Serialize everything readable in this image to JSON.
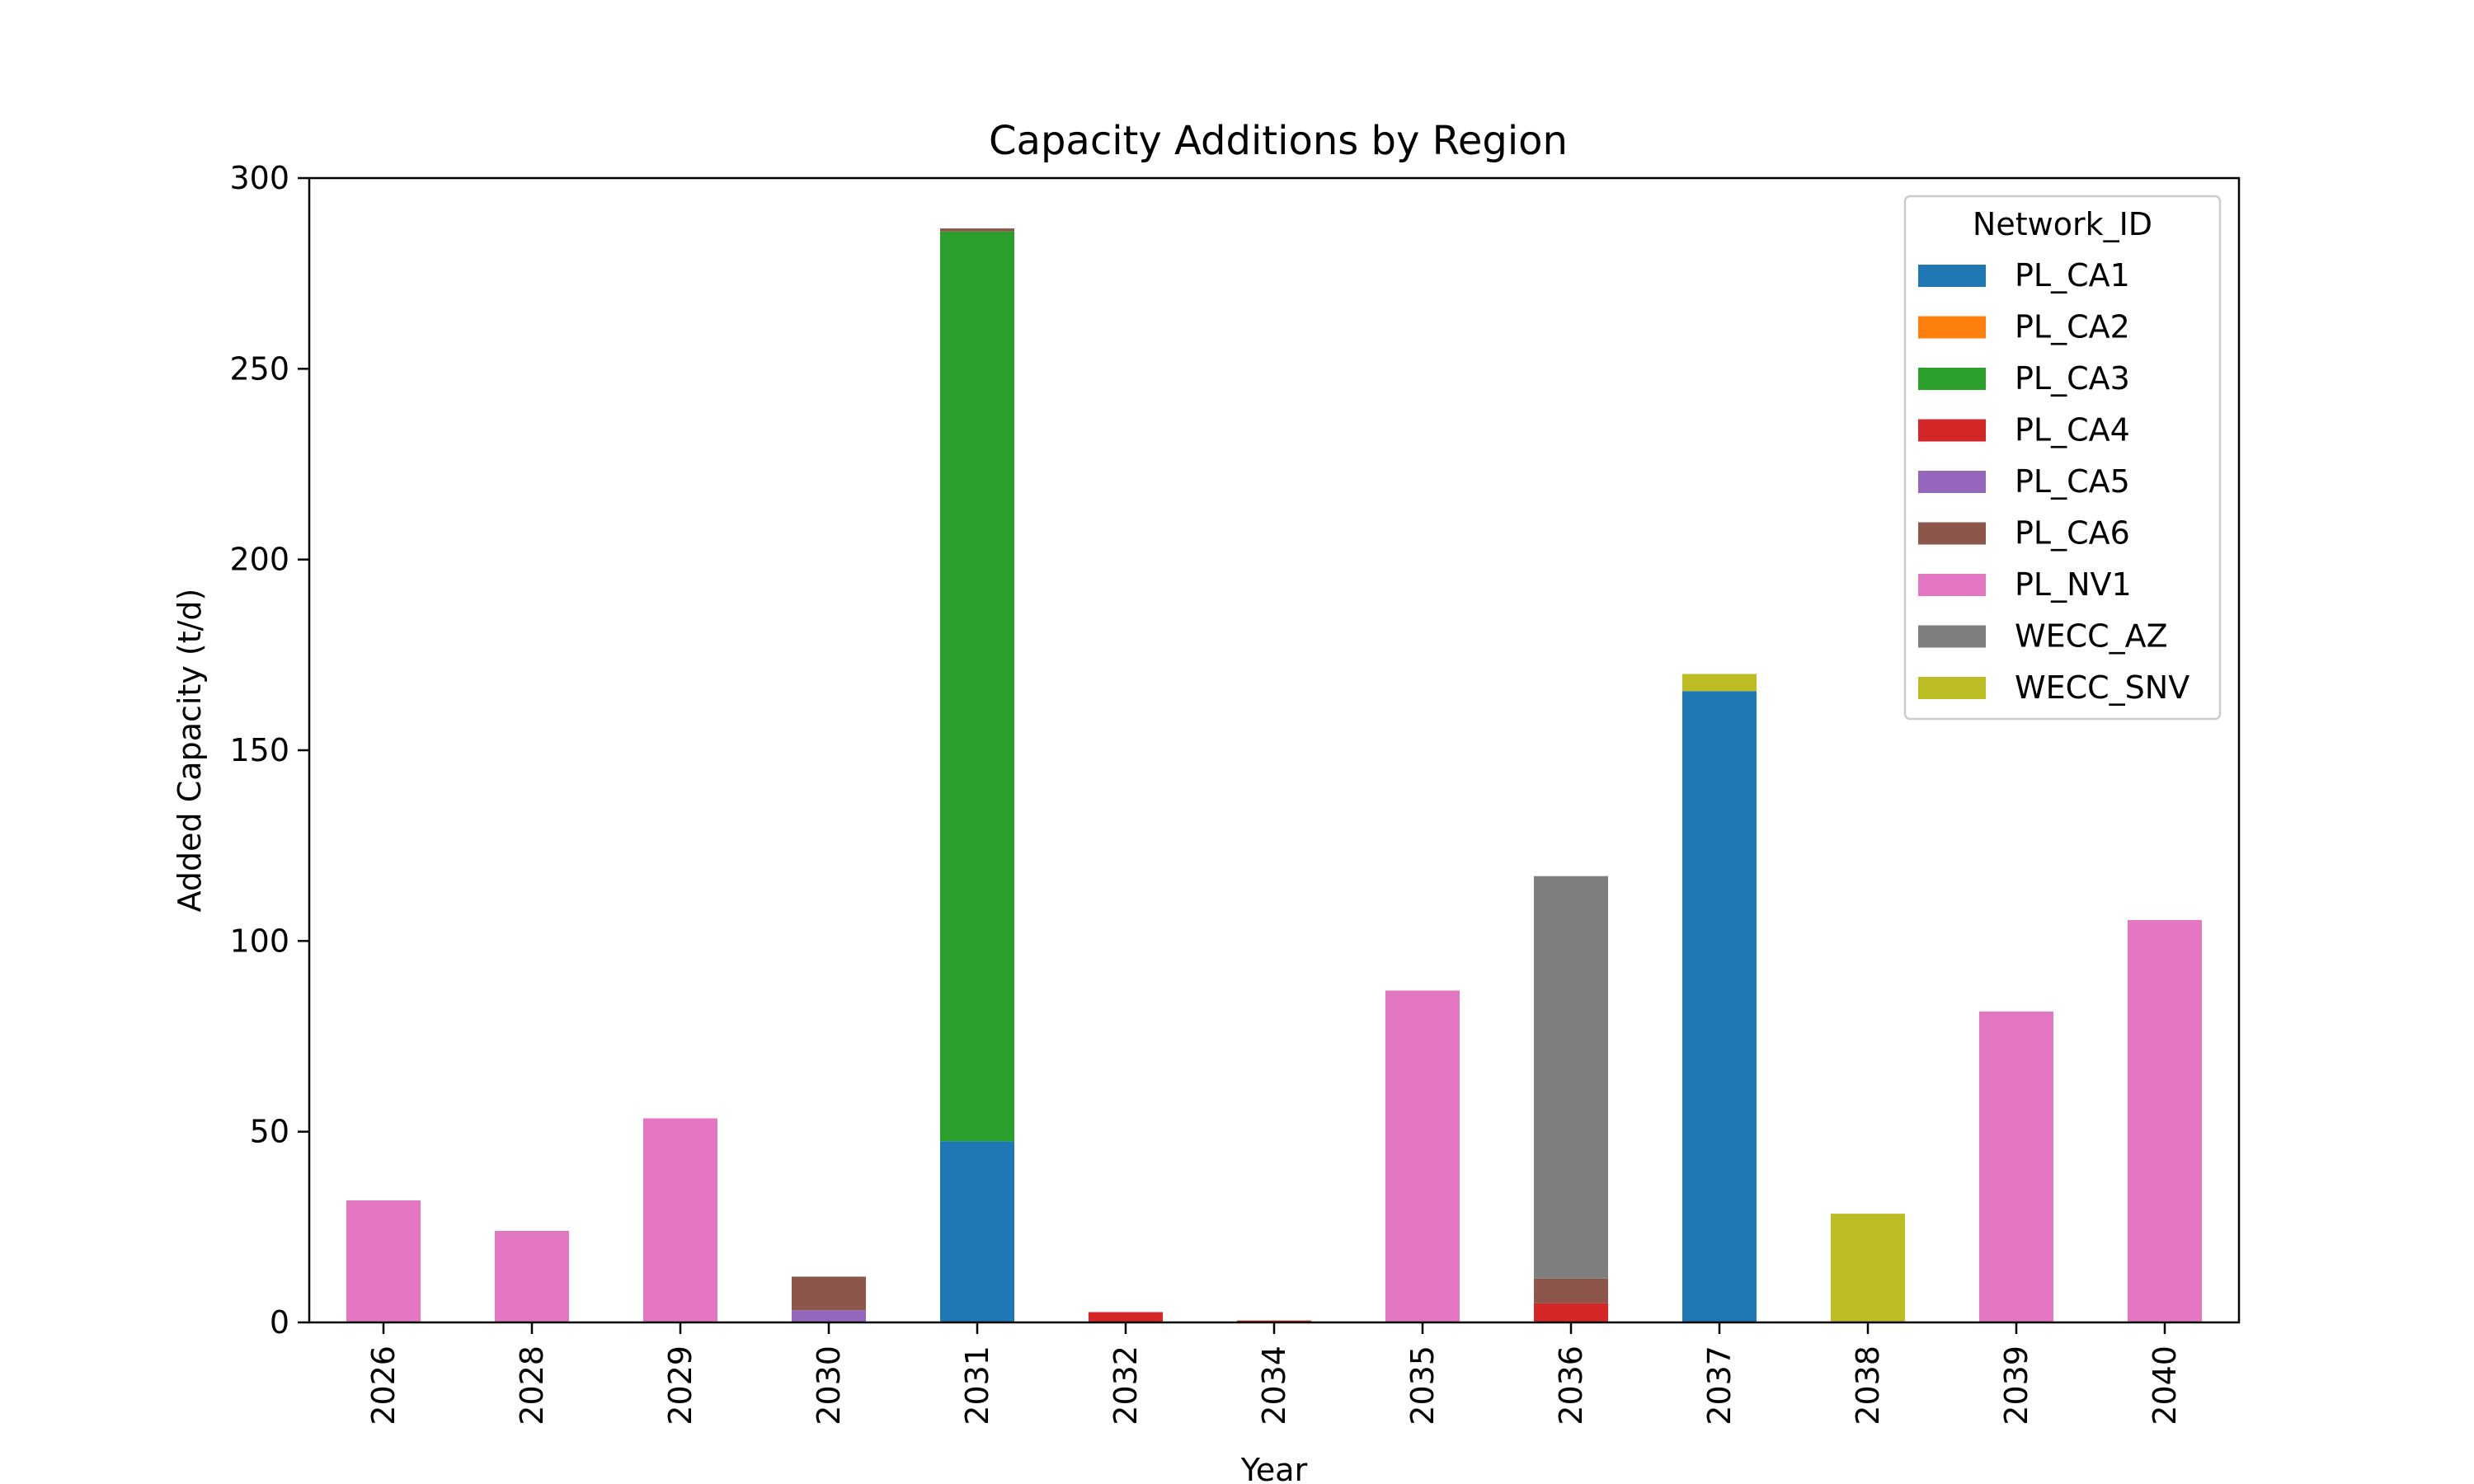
{
  "chart_data": {
    "type": "bar",
    "stacked": true,
    "title": "Capacity Additions by Region",
    "xlabel": "Year",
    "ylabel": "Added Capacity (t/d)",
    "ylim": [
      0,
      300
    ],
    "yticks": [
      0,
      50,
      100,
      150,
      200,
      250,
      300
    ],
    "grid": false,
    "legend": {
      "title": "Network_ID",
      "placement": "upper-right"
    },
    "categories": [
      "2026",
      "2028",
      "2029",
      "2030",
      "2031",
      "2032",
      "2034",
      "2035",
      "2036",
      "2037",
      "2038",
      "2039",
      "2040"
    ],
    "series": [
      {
        "name": "PL_CA1",
        "color": "#1f77b4",
        "values": [
          0,
          0,
          0,
          0,
          47.5,
          0,
          0,
          0,
          0,
          165.5,
          0,
          0,
          0
        ]
      },
      {
        "name": "PL_CA2",
        "color": "#ff7f0e",
        "values": [
          0,
          0,
          0,
          0,
          0,
          0,
          0,
          0,
          0,
          0,
          0,
          0,
          0
        ]
      },
      {
        "name": "PL_CA3",
        "color": "#2ca02c",
        "values": [
          0,
          0,
          0,
          0,
          238.5,
          0,
          0,
          0,
          0,
          0,
          0,
          0,
          0
        ]
      },
      {
        "name": "PL_CA4",
        "color": "#d62728",
        "values": [
          0,
          0,
          0,
          0,
          0,
          2.7,
          0.5,
          0,
          5,
          0,
          0,
          0,
          0
        ]
      },
      {
        "name": "PL_CA5",
        "color": "#9467bd",
        "values": [
          0,
          0,
          0,
          3.2,
          0,
          0,
          0,
          0,
          0,
          0,
          0,
          0,
          0
        ]
      },
      {
        "name": "PL_CA6",
        "color": "#8c564b",
        "values": [
          0,
          0,
          0,
          8.8,
          0.8,
          0,
          0,
          0,
          6.5,
          0,
          0,
          0,
          0
        ]
      },
      {
        "name": "PL_NV1",
        "color": "#e377c2",
        "values": [
          32,
          24,
          53.5,
          0,
          0,
          0,
          0,
          87,
          0,
          0,
          0,
          81.5,
          105.5
        ]
      },
      {
        "name": "WECC_AZ",
        "color": "#7f7f7f",
        "values": [
          0,
          0,
          0,
          0,
          0,
          0,
          0,
          0,
          105.5,
          0,
          0,
          0,
          0
        ]
      },
      {
        "name": "WECC_SNV",
        "color": "#bcbd22",
        "values": [
          0,
          0,
          0,
          0,
          0,
          0,
          0,
          0,
          0,
          4.5,
          28.5,
          0,
          0
        ]
      }
    ]
  }
}
